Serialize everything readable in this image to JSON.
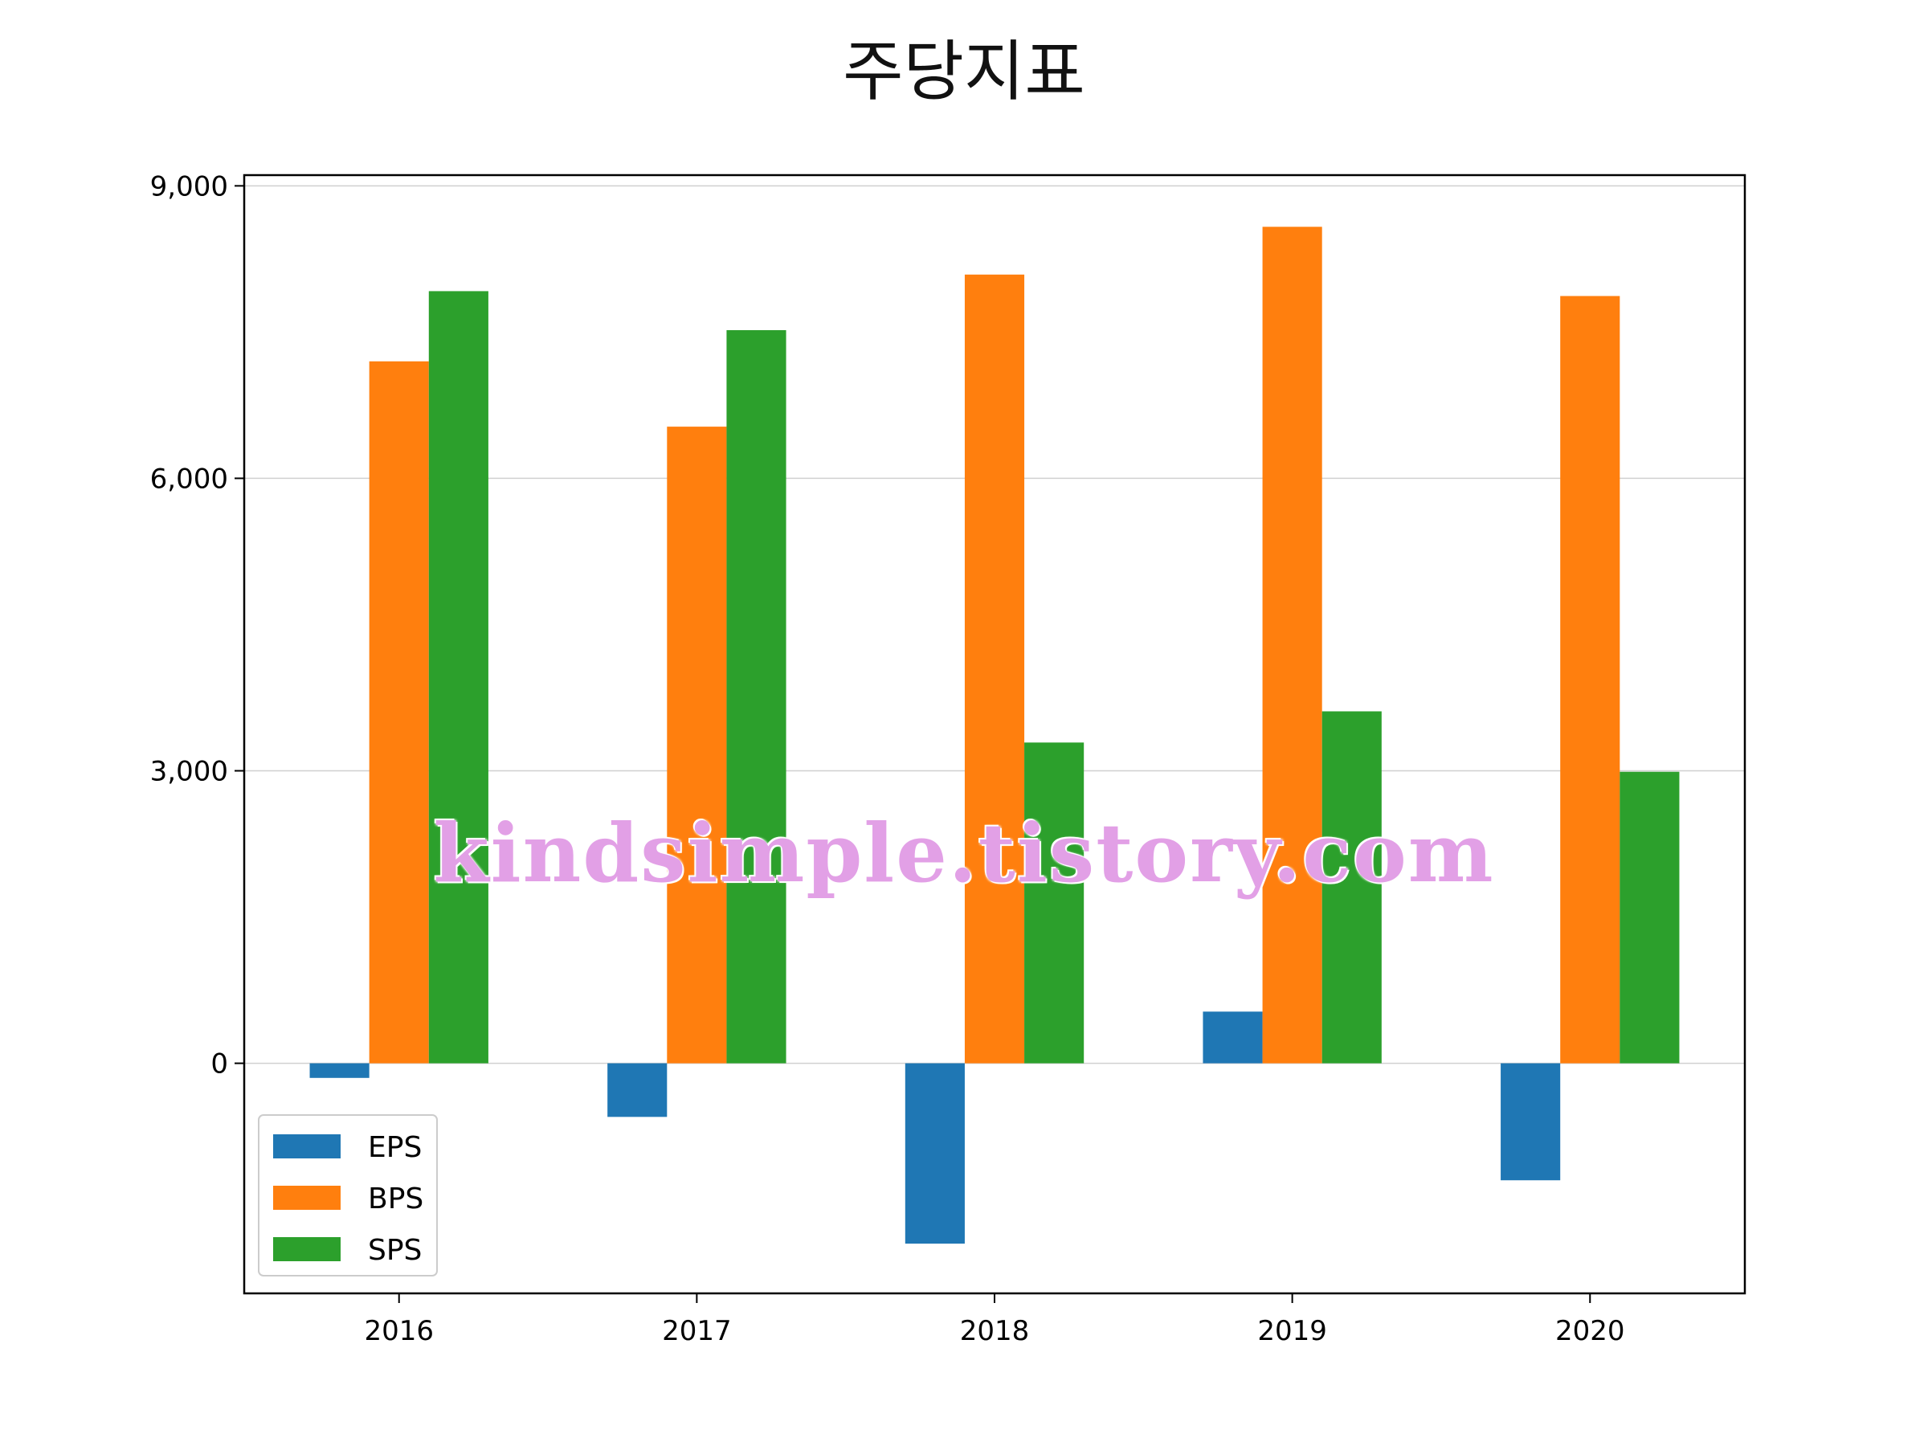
{
  "chart_data": {
    "type": "bar",
    "title": "주당지표",
    "xlabel": "",
    "ylabel": "",
    "categories": [
      "2016",
      "2017",
      "2018",
      "2019",
      "2020"
    ],
    "series": [
      {
        "name": "EPS",
        "color": "#1f77b4",
        "values": [
          -150,
          -550,
          -1850,
          530,
          -1200
        ]
      },
      {
        "name": "BPS",
        "color": "#ff7f0e",
        "values": [
          7200,
          6530,
          8090,
          8580,
          7870
        ]
      },
      {
        "name": "SPS",
        "color": "#2ca02c",
        "values": [
          7920,
          7520,
          3290,
          3610,
          2990
        ]
      }
    ],
    "yticks": [
      0,
      3000,
      6000,
      9000
    ],
    "ytick_labels": [
      "0",
      "3,000",
      "6,000",
      "9,000"
    ],
    "ylim": [
      -2360,
      9110
    ],
    "grid": "y",
    "legend": "lower-left"
  },
  "watermark": "kindsimple.tistory.com"
}
